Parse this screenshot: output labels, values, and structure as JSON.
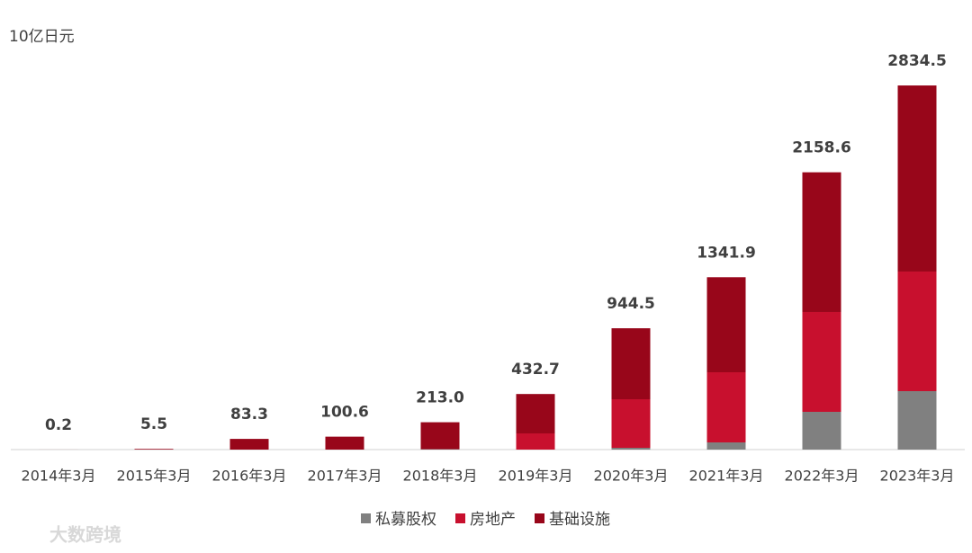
{
  "chart_data": {
    "type": "stacked_bar",
    "unit_label": "10亿日元",
    "watermark": "大数跨境",
    "categories": [
      "2014年3月",
      "2015年3月",
      "2016年3月",
      "2017年3月",
      "2018年3月",
      "2019年3月",
      "2020年3月",
      "2021年3月",
      "2022年3月",
      "2023年3月"
    ],
    "series": [
      {
        "name": "私募股权",
        "color": "#808080",
        "values": [
          0,
          0,
          0,
          0,
          3,
          0,
          14,
          56,
          294,
          455
        ]
      },
      {
        "name": "房地产",
        "color": "#c8102e",
        "values": [
          0,
          0,
          0,
          0,
          0,
          126,
          378,
          546,
          777,
          931
        ]
      },
      {
        "name": "基础设施",
        "color": "#98061a",
        "values": [
          0.2,
          5.5,
          83.3,
          100.6,
          210,
          306.7,
          552.5,
          739.9,
          1087.6,
          1448.5
        ]
      }
    ],
    "totals": [
      0.2,
      5.5,
      83.3,
      100.6,
      213.0,
      432.7,
      944.5,
      1341.9,
      2158.6,
      2834.5
    ],
    "total_labels": [
      "0.2",
      "5.5",
      "83.3",
      "100.6",
      "213.0",
      "432.7",
      "944.5",
      "1341.9",
      "2158.6",
      "2834.5"
    ],
    "ylim": [
      0,
      3000
    ],
    "legend": "bottom"
  }
}
